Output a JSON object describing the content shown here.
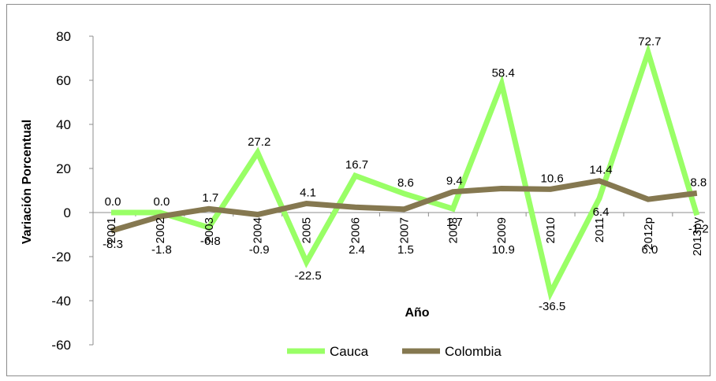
{
  "chart_data": {
    "type": "line",
    "title": "",
    "xlabel": "Año",
    "ylabel": "Variación  Porcentual",
    "ylim": [
      -60,
      80
    ],
    "yticks": [
      80,
      60,
      40,
      20,
      0,
      -20,
      -40,
      -60
    ],
    "categories": [
      "2001",
      "2002",
      "2003",
      "2004",
      "2005",
      "2006",
      "2007",
      "2008",
      "2009",
      "2010",
      "2011",
      "2012p",
      "2013py"
    ],
    "series": [
      {
        "name": "Cauca",
        "color": "#99ff66",
        "values": [
          0.0,
          0.0,
          -6.8,
          27.2,
          -22.5,
          16.7,
          8.6,
          1.7,
          58.4,
          -36.5,
          6.4,
          72.7,
          -1.2
        ],
        "labels": [
          "0.0",
          "0.0",
          "-6.8",
          "27.2",
          "-22.5",
          "16.7",
          "8.6",
          "1.7",
          "58.4",
          "-36.5",
          "6.4",
          "72.7",
          "-1.2"
        ]
      },
      {
        "name": "Colombia",
        "color": "#857850",
        "values": [
          -8.3,
          -1.8,
          1.7,
          -0.9,
          4.1,
          2.4,
          1.5,
          9.4,
          10.9,
          10.6,
          14.4,
          6.0,
          8.8
        ],
        "labels": [
          "-8.3",
          "-1.8",
          "1.7",
          "-0.9",
          "4.1",
          "2.4",
          "1.5",
          "9.4",
          "10.9",
          "10.6",
          "14.4",
          "6.0",
          "8.8"
        ]
      }
    ],
    "legend": "bottom",
    "grid": false
  }
}
